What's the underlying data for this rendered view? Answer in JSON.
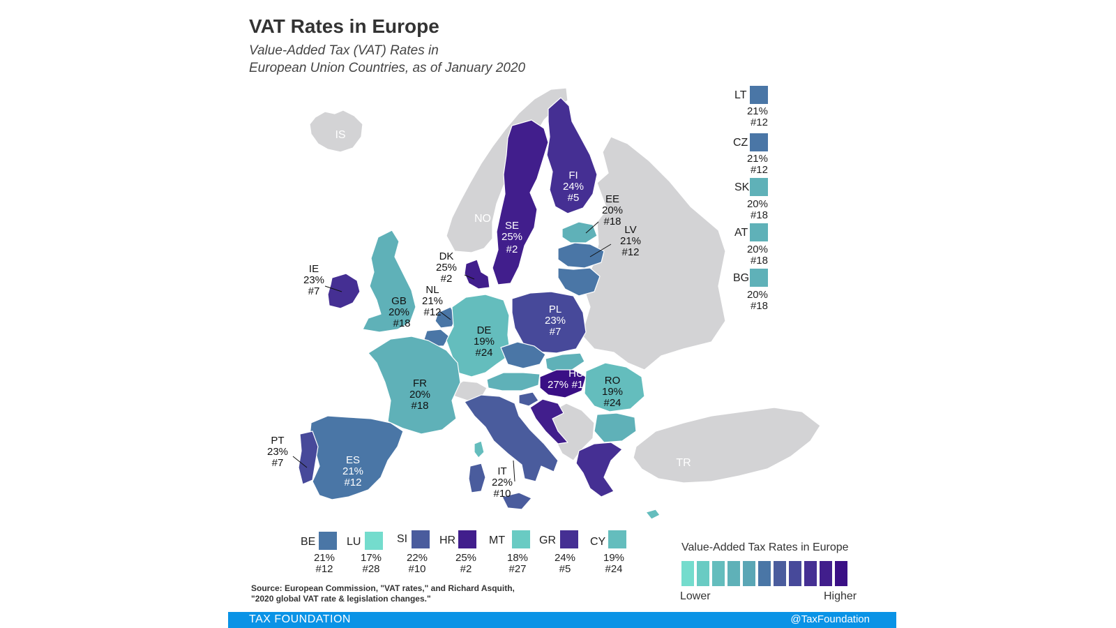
{
  "title": "VAT Rates in Europe",
  "subtitle_line1": "Value-Added Tax (VAT) Rates in",
  "subtitle_line2": "European Union Countries, as of January 2020",
  "colors": {
    "scale": [
      "#74dccd",
      "#69cbc3",
      "#64bdbd",
      "#5fb1b8",
      "#5aa6b5",
      "#4a76a6",
      "#4a5c9d",
      "#47499a",
      "#452f93",
      "#411e8c",
      "#3a0f85"
    ],
    "non_eu": "#d3d3d5",
    "footer": "#0a93e6"
  },
  "map_labels": {
    "IS": "IS",
    "NO": "NO",
    "TR": "TR",
    "FI": {
      "code": "FI",
      "rate": "24%",
      "rank": "#5"
    },
    "SE": {
      "code": "SE",
      "rate": "25%",
      "rank": "#2"
    },
    "EE": {
      "code": "EE",
      "rate": "20%",
      "rank": "#18"
    },
    "LV": {
      "code": "LV",
      "rate": "21%",
      "rank": "#12"
    },
    "DK": {
      "code": "DK",
      "rate": "25%",
      "rank": "#2"
    },
    "IE": {
      "code": "IE",
      "rate": "23%",
      "rank": "#7"
    },
    "GB": {
      "code": "GB",
      "rate": "20%",
      "rank": "#18"
    },
    "NL": {
      "code": "NL",
      "rate": "21%",
      "rank": "#12"
    },
    "DE": {
      "code": "DE",
      "rate": "19%",
      "rank": "#24"
    },
    "PL": {
      "code": "PL",
      "rate": "23%",
      "rank": "#7"
    },
    "FR": {
      "code": "FR",
      "rate": "20%",
      "rank": "#18"
    },
    "HU": {
      "code": "HU",
      "rate": "27%",
      "rank": "#1"
    },
    "RO": {
      "code": "RO",
      "rate": "19%",
      "rank": "#24"
    },
    "PT": {
      "code": "PT",
      "rate": "23%",
      "rank": "#7"
    },
    "ES": {
      "code": "ES",
      "rate": "21%",
      "rank": "#12"
    },
    "IT": {
      "code": "IT",
      "rate": "22%",
      "rank": "#10"
    }
  },
  "side_legend": [
    {
      "code": "LT",
      "rate": "21%",
      "rank": "#12",
      "color": "#4a76a6"
    },
    {
      "code": "CZ",
      "rate": "21%",
      "rank": "#12",
      "color": "#4a76a6"
    },
    {
      "code": "SK",
      "rate": "20%",
      "rank": "#18",
      "color": "#5fb1b8"
    },
    {
      "code": "AT",
      "rate": "20%",
      "rank": "#18",
      "color": "#5fb1b8"
    },
    {
      "code": "BG",
      "rate": "20%",
      "rank": "#18",
      "color": "#5fb1b8"
    }
  ],
  "bottom_legend": [
    {
      "code": "BE",
      "rate": "21%",
      "rank": "#12",
      "color": "#4a76a6"
    },
    {
      "code": "LU",
      "rate": "17%",
      "rank": "#28",
      "color": "#74dccd"
    },
    {
      "code": "SI",
      "rate": "22%",
      "rank": "#10",
      "color": "#4a5c9d"
    },
    {
      "code": "HR",
      "rate": "25%",
      "rank": "#2",
      "color": "#411e8c"
    },
    {
      "code": "MT",
      "rate": "18%",
      "rank": "#27",
      "color": "#69cbc3"
    },
    {
      "code": "GR",
      "rate": "24%",
      "rank": "#5",
      "color": "#452f93"
    },
    {
      "code": "CY",
      "rate": "19%",
      "rank": "#24",
      "color": "#64bdbd"
    }
  ],
  "legend": {
    "title": "Value-Added Tax Rates in Europe",
    "low": "Lower",
    "high": "Higher"
  },
  "source_line1": "Source: European Commission, \"VAT rates,\" and Richard Asquith,",
  "source_line2": "\"2020 global VAT rate & legislation changes.\"",
  "footer_left": "TAX FOUNDATION",
  "footer_right": "@TaxFoundation"
}
